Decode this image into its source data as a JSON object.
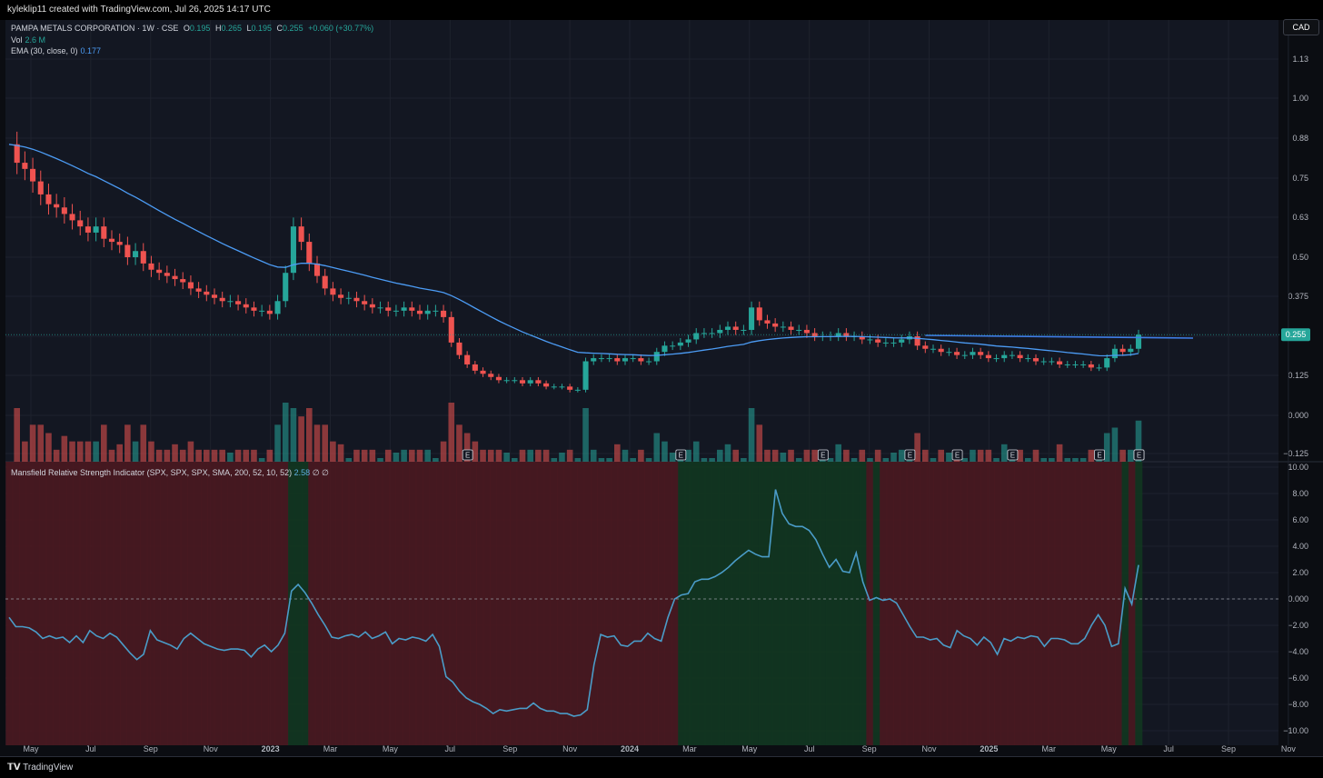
{
  "header": {
    "attribution": "kyleklip11 created with TradingView.com, Jul 26, 2025 14:17 UTC"
  },
  "legend": {
    "symbol": "PAMPA METALS CORPORATION · 1W · CSE",
    "open_label": "O",
    "open": "0.195",
    "high_label": "H",
    "high": "0.265",
    "low_label": "L",
    "low": "0.195",
    "close_label": "C",
    "close": "0.255",
    "change": "+0.060 (+30.77%)",
    "vol_label": "Vol",
    "vol": "2.6 M",
    "ema_label": "EMA (30, close, 0)",
    "ema": "0.177"
  },
  "currency_button": "CAD",
  "indicator_legend": {
    "label": "Mansfield Relative Strength Indicator (SPX, SPX, SPX, SMA, 200, 52, 10, 52)",
    "value": "2.58",
    "extra": "∅ ∅"
  },
  "footer": {
    "brand": "TradingView"
  },
  "colors": {
    "up": "#26a69a",
    "down": "#ef5350",
    "ema": "#4c9cf5",
    "bg": "#131722",
    "rs_line": "#4a9cc8",
    "zone_red": "#4a1820",
    "zone_green": "#123620"
  },
  "chart_data": [
    {
      "type": "candlestick",
      "title": "PAMPA METALS CORPORATION · 1W · CSE",
      "y_axis_ticks": [
        "1.13",
        "1.00",
        "0.88",
        "0.75",
        "0.63",
        "0.50",
        "0.375",
        "0.250",
        "0.125",
        "0.000",
        "−0.125"
      ],
      "ylim": [
        -0.125,
        1.13
      ],
      "x_axis_labels": [
        "May",
        "Jul",
        "Sep",
        "Nov",
        "2023",
        "Mar",
        "May",
        "Jul",
        "Sep",
        "Nov",
        "2024",
        "Mar",
        "May",
        "Jul",
        "Sep",
        "Nov",
        "2025",
        "Mar",
        "May",
        "Jul",
        "Sep",
        "Nov"
      ],
      "last_price_label": "0.255",
      "earnings_markers": [
        "E",
        "E",
        "E",
        "E",
        "E",
        "E",
        "E",
        "E",
        "E"
      ],
      "close_series_start": "2022-04-25",
      "weekly_close": [
        0.86,
        0.8,
        0.78,
        0.74,
        0.7,
        0.67,
        0.66,
        0.64,
        0.62,
        0.6,
        0.58,
        0.6,
        0.56,
        0.55,
        0.54,
        0.5,
        0.52,
        0.48,
        0.46,
        0.45,
        0.44,
        0.43,
        0.42,
        0.4,
        0.39,
        0.38,
        0.37,
        0.36,
        0.36,
        0.35,
        0.34,
        0.33,
        0.33,
        0.32,
        0.36,
        0.45,
        0.6,
        0.55,
        0.48,
        0.44,
        0.4,
        0.38,
        0.37,
        0.37,
        0.36,
        0.35,
        0.34,
        0.34,
        0.33,
        0.33,
        0.34,
        0.33,
        0.32,
        0.33,
        0.33,
        0.31,
        0.23,
        0.19,
        0.16,
        0.14,
        0.13,
        0.12,
        0.11,
        0.11,
        0.11,
        0.1,
        0.11,
        0.1,
        0.09,
        0.09,
        0.09,
        0.08,
        0.08,
        0.17,
        0.18,
        0.18,
        0.18,
        0.17,
        0.18,
        0.18,
        0.17,
        0.17,
        0.2,
        0.22,
        0.22,
        0.23,
        0.24,
        0.26,
        0.26,
        0.26,
        0.27,
        0.28,
        0.27,
        0.27,
        0.34,
        0.3,
        0.29,
        0.28,
        0.28,
        0.27,
        0.27,
        0.26,
        0.25,
        0.25,
        0.25,
        0.26,
        0.25,
        0.25,
        0.24,
        0.24,
        0.23,
        0.23,
        0.23,
        0.24,
        0.25,
        0.22,
        0.21,
        0.21,
        0.2,
        0.2,
        0.19,
        0.19,
        0.2,
        0.19,
        0.18,
        0.18,
        0.19,
        0.19,
        0.18,
        0.18,
        0.17,
        0.17,
        0.17,
        0.16,
        0.16,
        0.16,
        0.16,
        0.15,
        0.15,
        0.18,
        0.21,
        0.2,
        0.21,
        0.255
      ],
      "ema30_series": "EMA (30, close, 0)",
      "horizontal_line": 0.25
    },
    {
      "type": "line",
      "title": "Mansfield Relative Strength Indicator (SPX, SPX, SPX, SMA, 200, 52, 10, 52)",
      "y_axis_ticks": [
        "10.00",
        "8.00",
        "6.00",
        "4.00",
        "2.00",
        "0.000",
        "−2.00",
        "−4.00",
        "−6.00",
        "−8.00",
        "−10.00"
      ],
      "ylim": [
        -10,
        10
      ],
      "zero_line": 0,
      "rs_series": [
        -1.4,
        -2.1,
        -2.1,
        -2.2,
        -2.5,
        -3.0,
        -2.8,
        -3.0,
        -2.9,
        -3.3,
        -2.8,
        -3.3,
        -2.4,
        -2.8,
        -3.0,
        -2.6,
        -2.9,
        -3.5,
        -4.1,
        -4.6,
        -4.2,
        -2.4,
        -3.1,
        -3.3,
        -3.5,
        -3.8,
        -3.0,
        -2.6,
        -3.0,
        -3.4,
        -3.6,
        -3.8,
        -3.9,
        -3.8,
        -3.8,
        -3.9,
        -4.4,
        -3.8,
        -3.5,
        -4.0,
        -3.5,
        -2.6,
        0.6,
        1.1,
        0.5,
        -0.3,
        -1.2,
        -2.0,
        -2.9,
        -3.0,
        -2.8,
        -2.7,
        -2.9,
        -2.5,
        -3.0,
        -2.8,
        -2.5,
        -3.4,
        -3.0,
        -3.1,
        -2.9,
        -3.0,
        -3.2,
        -2.7,
        -3.6,
        -5.9,
        -6.3,
        -7.0,
        -7.5,
        -7.8,
        -8.0,
        -8.3,
        -8.7,
        -8.4,
        -8.5,
        -8.4,
        -8.3,
        -8.3,
        -7.9,
        -8.3,
        -8.5,
        -8.5,
        -8.7,
        -8.7,
        -8.9,
        -8.8,
        -8.4,
        -5.0,
        -2.7,
        -2.9,
        -2.8,
        -3.5,
        -3.6,
        -3.2,
        -3.2,
        -2.6,
        -3.0,
        -3.2,
        -1.4,
        0.0,
        0.3,
        0.4,
        1.3,
        1.5,
        1.5,
        1.7,
        2.0,
        2.4,
        2.9,
        3.3,
        3.7,
        3.4,
        3.2,
        3.2,
        8.3,
        6.5,
        5.7,
        5.5,
        5.5,
        5.2,
        4.5,
        3.4,
        2.4,
        3.0,
        2.1,
        2.0,
        3.5,
        1.3,
        -0.1,
        0.1,
        -0.1,
        0.0,
        -0.3,
        -1.2,
        -2.1,
        -2.9,
        -2.9,
        -3.1,
        -3.0,
        -3.5,
        -3.7,
        -2.4,
        -2.8,
        -3.0,
        -3.5,
        -2.9,
        -3.3,
        -4.2,
        -3.0,
        -3.2,
        -2.9,
        -3.0,
        -2.8,
        -2.9,
        -3.6,
        -3.0,
        -3.0,
        -3.1,
        -3.4,
        -3.4,
        -3.0,
        -2.0,
        -1.2,
        -2.0,
        -3.6,
        -3.4,
        0.8,
        -0.4,
        2.58
      ],
      "zones_note": "background red when RS<0, green when RS>0"
    }
  ]
}
